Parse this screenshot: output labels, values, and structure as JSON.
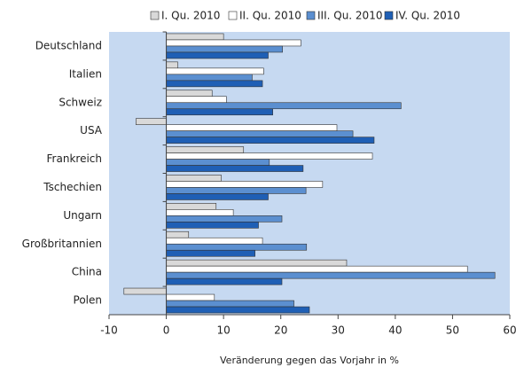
{
  "chart_data": {
    "type": "bar",
    "orientation": "horizontal",
    "x_label": "Veränderung gegen das Vorjahr in %",
    "categories": [
      "Deutschland",
      "Italien",
      "Schweiz",
      "USA",
      "Frankreich",
      "Tschechien",
      "Ungarn",
      "Großbritannien",
      "China",
      "Polen"
    ],
    "series": [
      {
        "name": "I. Qu. 2010",
        "color": "#d9d9d9",
        "values": [
          10,
          2,
          8,
          -5.3,
          13.5,
          9.6,
          8.7,
          3.9,
          31.5,
          -7.4
        ]
      },
      {
        "name": "II. Qu. 2010",
        "color": "#ffffff",
        "values": [
          23.5,
          17,
          10.5,
          29.8,
          36,
          27.3,
          11.7,
          16.8,
          52.6,
          8.4
        ]
      },
      {
        "name": "III. Qu. 2010",
        "color": "#5b8fd0",
        "values": [
          20.3,
          15,
          41,
          32.6,
          18,
          24.4,
          20.2,
          24.5,
          57.4,
          22.3
        ]
      },
      {
        "name": "IV. Qu. 2010",
        "color": "#1f5fb5",
        "values": [
          17.8,
          16.8,
          18.6,
          36.3,
          23.9,
          17.8,
          16.1,
          15.5,
          20.2,
          25
        ]
      }
    ],
    "xlim": [
      -10,
      60
    ],
    "xticks": [
      -10,
      0,
      10,
      20,
      30,
      40,
      50,
      60
    ],
    "plot_background": "#c6d9f1",
    "legend": "top"
  }
}
